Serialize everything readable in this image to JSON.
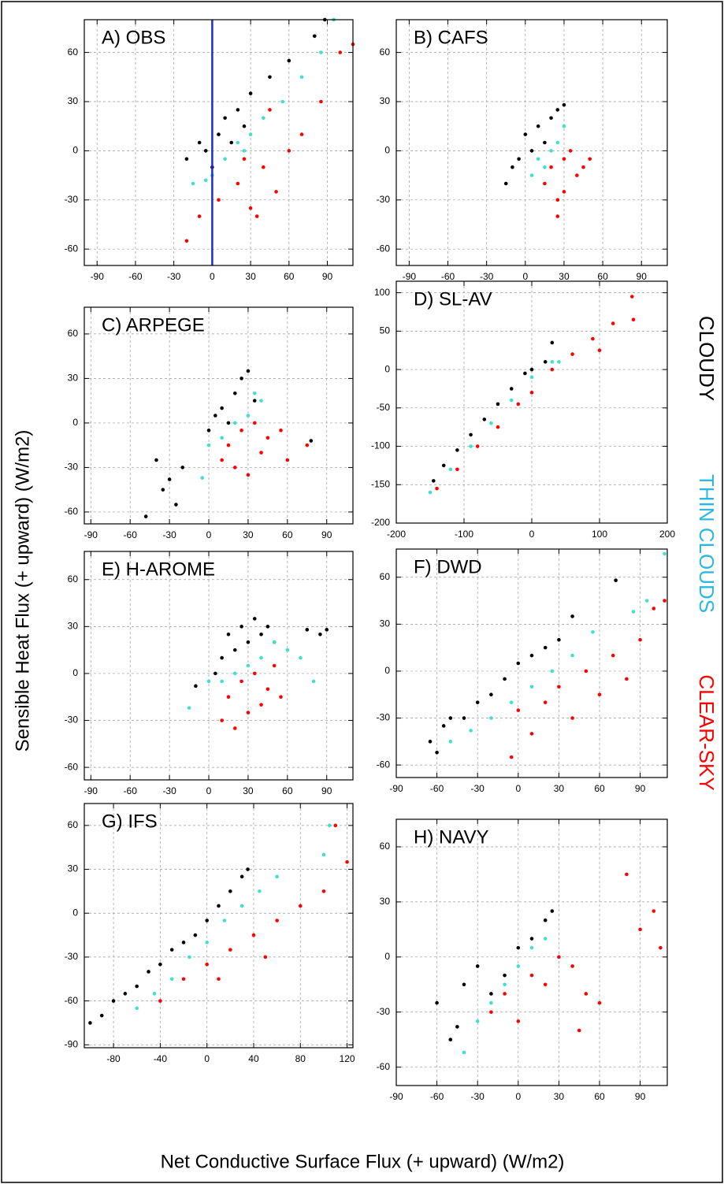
{
  "xlabel": "Net Conductive Surface Flux (+ upward) (W/m2)",
  "ylabel": "Sensible Heat Flux (+ upward) (W/m2)",
  "legend": [
    {
      "name": "CLOUDY",
      "color": "#000000"
    },
    {
      "name": "THIN CLOUDS",
      "color": "#2bb8e0"
    },
    {
      "name": "CLEAR-SKY",
      "color": "#ff0000"
    }
  ],
  "chart_data": [
    {
      "type": "scatter",
      "title": "A) OBS",
      "grid": true,
      "xlim": [
        -100,
        110
      ],
      "ylim": [
        -70,
        80
      ],
      "xticks": [
        -90,
        -60,
        -30,
        0,
        30,
        60,
        90
      ],
      "yticks": [
        -60,
        -30,
        0,
        30,
        60
      ],
      "vline": {
        "x": 0,
        "color": "#1a2fd0"
      },
      "series": [
        {
          "color": "#000000",
          "x": [
            -20,
            -10,
            0,
            5,
            10,
            15,
            20,
            30,
            45,
            60,
            80,
            88,
            -5,
            25
          ],
          "y": [
            -5,
            5,
            -10,
            10,
            20,
            5,
            25,
            35,
            45,
            55,
            70,
            80,
            0,
            15
          ]
        },
        {
          "color": "#40e0d0",
          "x": [
            -15,
            0,
            10,
            20,
            30,
            40,
            55,
            70,
            85,
            95,
            -5,
            25
          ],
          "y": [
            -20,
            -15,
            -5,
            5,
            10,
            20,
            30,
            45,
            60,
            80,
            -18,
            0
          ]
        },
        {
          "color": "#ff0000",
          "x": [
            -20,
            -10,
            5,
            20,
            30,
            40,
            50,
            60,
            70,
            85,
            100,
            110,
            35,
            45,
            25
          ],
          "y": [
            -55,
            -40,
            -30,
            -20,
            -35,
            -10,
            -25,
            0,
            10,
            30,
            60,
            65,
            -40,
            25,
            -5
          ]
        }
      ]
    },
    {
      "type": "scatter",
      "title": "B) CAFS",
      "grid": true,
      "xlim": [
        -100,
        110
      ],
      "ylim": [
        -70,
        80
      ],
      "xticks": [
        -90,
        -60,
        -30,
        0,
        30,
        60,
        90
      ],
      "yticks": [
        -60,
        -30,
        0,
        30,
        60
      ],
      "series": [
        {
          "color": "#000000",
          "x": [
            -15,
            -5,
            0,
            5,
            10,
            15,
            20,
            25,
            30,
            -10
          ],
          "y": [
            -20,
            -5,
            10,
            0,
            15,
            5,
            20,
            25,
            28,
            -10
          ]
        },
        {
          "color": "#40e0d0",
          "x": [
            5,
            10,
            15,
            20,
            25,
            30
          ],
          "y": [
            -15,
            -5,
            -10,
            0,
            5,
            15
          ]
        },
        {
          "color": "#ff0000",
          "x": [
            15,
            20,
            25,
            30,
            35,
            40,
            45,
            50,
            25,
            30
          ],
          "y": [
            -20,
            -10,
            -30,
            -5,
            0,
            -15,
            -10,
            -5,
            -40,
            -25
          ]
        }
      ]
    },
    {
      "type": "scatter",
      "title": "C) ARPEGE",
      "grid": true,
      "xlim": [
        -95,
        110
      ],
      "ylim": [
        -68,
        78
      ],
      "xticks": [
        -90,
        -60,
        -30,
        0,
        30,
        60,
        90
      ],
      "yticks": [
        -60,
        -30,
        0,
        30,
        60
      ],
      "series": [
        {
          "color": "#000000",
          "x": [
            -48,
            -40,
            -35,
            -30,
            -25,
            0,
            5,
            10,
            15,
            20,
            25,
            30,
            35,
            78,
            -20
          ],
          "y": [
            -63,
            -25,
            -45,
            -38,
            -55,
            -5,
            5,
            10,
            0,
            20,
            30,
            35,
            15,
            -12,
            -30
          ]
        },
        {
          "color": "#40e0d0",
          "x": [
            -5,
            0,
            10,
            20,
            30,
            40,
            35
          ],
          "y": [
            -37,
            -15,
            -10,
            0,
            5,
            15,
            20
          ]
        },
        {
          "color": "#ff0000",
          "x": [
            10,
            15,
            20,
            25,
            30,
            35,
            40,
            45,
            55,
            60,
            75
          ],
          "y": [
            -25,
            -15,
            -30,
            -5,
            -35,
            0,
            -20,
            -10,
            -5,
            -25,
            -15
          ]
        }
      ]
    },
    {
      "type": "scatter",
      "title": "D) SL-AV",
      "grid": true,
      "xlim": [
        -200,
        200
      ],
      "ylim": [
        -200,
        115
      ],
      "xticks": [
        -200,
        -100,
        0,
        100,
        200
      ],
      "yticks": [
        -200,
        -150,
        -100,
        -50,
        0,
        50,
        100
      ],
      "series": [
        {
          "color": "#000000",
          "x": [
            -145,
            -130,
            -110,
            -90,
            -70,
            -50,
            -30,
            -10,
            0,
            20,
            30
          ],
          "y": [
            -145,
            -125,
            -105,
            -85,
            -65,
            -45,
            -25,
            -5,
            0,
            10,
            35
          ]
        },
        {
          "color": "#40e0d0",
          "x": [
            -150,
            -120,
            -90,
            -60,
            -30,
            0,
            30,
            40
          ],
          "y": [
            -160,
            -130,
            -100,
            -70,
            -40,
            -10,
            10,
            10
          ]
        },
        {
          "color": "#ff0000",
          "x": [
            -140,
            -110,
            -80,
            -50,
            -20,
            0,
            30,
            60,
            90,
            120,
            148,
            150,
            100
          ],
          "y": [
            -155,
            -130,
            -100,
            -75,
            -45,
            -30,
            0,
            20,
            40,
            60,
            95,
            65,
            25
          ]
        }
      ]
    },
    {
      "type": "scatter",
      "title": "E) H-AROME",
      "grid": true,
      "xlim": [
        -95,
        110
      ],
      "ylim": [
        -68,
        78
      ],
      "xticks": [
        -90,
        -60,
        -30,
        0,
        30,
        60,
        90
      ],
      "yticks": [
        -60,
        -30,
        0,
        30,
        60
      ],
      "series": [
        {
          "color": "#000000",
          "x": [
            10,
            15,
            20,
            25,
            30,
            35,
            40,
            45,
            50,
            75,
            85,
            90,
            -10,
            5
          ],
          "y": [
            10,
            25,
            15,
            30,
            20,
            35,
            25,
            30,
            20,
            28,
            25,
            28,
            -8,
            0
          ]
        },
        {
          "color": "#40e0d0",
          "x": [
            -15,
            0,
            10,
            20,
            30,
            40,
            50,
            60,
            70,
            80
          ],
          "y": [
            -22,
            -5,
            -5,
            0,
            5,
            10,
            20,
            15,
            10,
            -5
          ]
        },
        {
          "color": "#ff0000",
          "x": [
            10,
            15,
            20,
            25,
            30,
            35,
            40,
            45,
            50,
            55
          ],
          "y": [
            -30,
            -15,
            -35,
            -5,
            -25,
            0,
            -20,
            -10,
            5,
            -15
          ]
        }
      ]
    },
    {
      "type": "scatter",
      "title": "F) DWD",
      "grid": true,
      "xlim": [
        -90,
        110
      ],
      "ylim": [
        -68,
        78
      ],
      "xticks": [
        -90,
        -60,
        -30,
        0,
        30,
        60,
        90
      ],
      "yticks": [
        -60,
        -30,
        0,
        30,
        60
      ],
      "series": [
        {
          "color": "#000000",
          "x": [
            -65,
            -60,
            -50,
            -40,
            -30,
            -20,
            -10,
            0,
            10,
            20,
            30,
            40,
            72,
            -55
          ],
          "y": [
            -45,
            -52,
            -30,
            -30,
            -20,
            -15,
            -5,
            5,
            10,
            15,
            20,
            35,
            58,
            -35
          ]
        },
        {
          "color": "#40e0d0",
          "x": [
            -50,
            -35,
            -20,
            -5,
            10,
            25,
            40,
            55,
            85,
            95,
            108
          ],
          "y": [
            -45,
            -38,
            -30,
            -20,
            -10,
            0,
            10,
            25,
            38,
            45,
            75
          ]
        },
        {
          "color": "#ff0000",
          "x": [
            -5,
            10,
            20,
            30,
            40,
            50,
            60,
            70,
            80,
            90,
            100,
            108,
            0
          ],
          "y": [
            -55,
            -40,
            -20,
            -10,
            -30,
            0,
            -15,
            10,
            -5,
            20,
            40,
            45,
            -25
          ]
        }
      ]
    },
    {
      "type": "scatter",
      "title": "G) IFS",
      "grid": true,
      "xlim": [
        -105,
        125
      ],
      "ylim": [
        -92,
        75
      ],
      "xticks": [
        -80,
        -40,
        0,
        40,
        80,
        120
      ],
      "yticks": [
        -90,
        -60,
        -30,
        0,
        30,
        60
      ],
      "series": [
        {
          "color": "#000000",
          "x": [
            -100,
            -90,
            -80,
            -70,
            -60,
            -50,
            -40,
            -30,
            -20,
            -10,
            0,
            10,
            20,
            30,
            35
          ],
          "y": [
            -75,
            -70,
            -60,
            -55,
            -50,
            -40,
            -35,
            -25,
            -20,
            -15,
            -5,
            5,
            15,
            25,
            30
          ]
        },
        {
          "color": "#40e0d0",
          "x": [
            -60,
            -45,
            -30,
            -15,
            0,
            15,
            30,
            45,
            60,
            100,
            105
          ],
          "y": [
            -65,
            -55,
            -45,
            -30,
            -20,
            -5,
            5,
            15,
            25,
            40,
            60
          ]
        },
        {
          "color": "#ff0000",
          "x": [
            -40,
            -20,
            0,
            20,
            40,
            60,
            80,
            100,
            110,
            120,
            10,
            50
          ],
          "y": [
            -60,
            -45,
            -35,
            -25,
            -15,
            -5,
            5,
            15,
            60,
            35,
            -45,
            -30
          ]
        }
      ]
    },
    {
      "type": "scatter",
      "title": "H) NAVY",
      "grid": true,
      "xlim": [
        -90,
        110
      ],
      "ylim": [
        -70,
        75
      ],
      "xticks": [
        -90,
        -60,
        -30,
        0,
        30,
        60,
        90
      ],
      "yticks": [
        -60,
        -30,
        0,
        30,
        60
      ],
      "series": [
        {
          "color": "#000000",
          "x": [
            -50,
            -45,
            -40,
            -30,
            -20,
            -10,
            0,
            10,
            20,
            25,
            -60
          ],
          "y": [
            -45,
            -38,
            -15,
            -5,
            -20,
            -10,
            5,
            10,
            20,
            25,
            -25
          ]
        },
        {
          "color": "#40e0d0",
          "x": [
            -40,
            -30,
            -20,
            -10,
            0,
            10,
            20
          ],
          "y": [
            -52,
            -35,
            -25,
            -15,
            -5,
            5,
            10
          ]
        },
        {
          "color": "#ff0000",
          "x": [
            -20,
            -10,
            0,
            10,
            20,
            30,
            40,
            50,
            60,
            80,
            90,
            100,
            105,
            45
          ],
          "y": [
            -30,
            -20,
            -35,
            -10,
            -15,
            0,
            -5,
            -20,
            -25,
            45,
            15,
            25,
            5,
            -40
          ]
        }
      ]
    }
  ]
}
